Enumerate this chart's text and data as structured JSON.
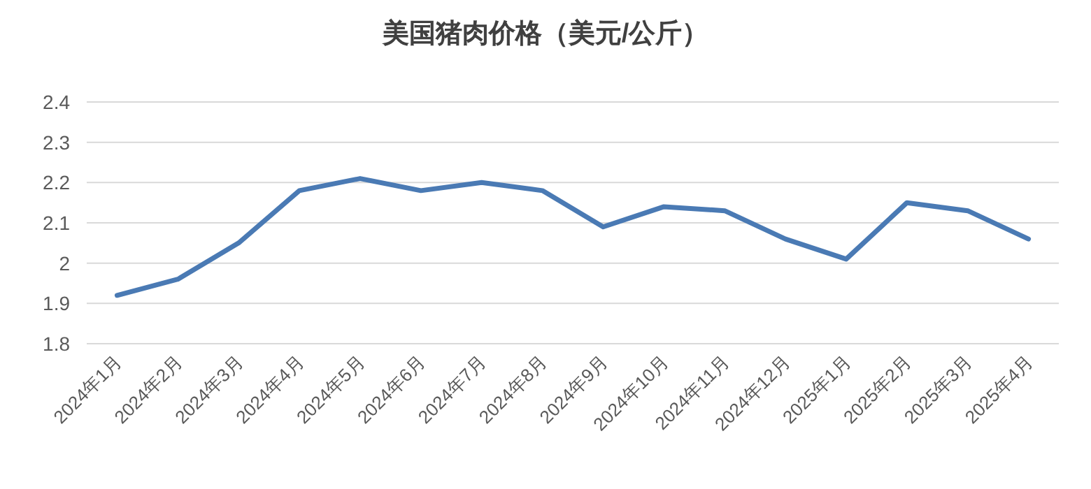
{
  "chart_data": {
    "type": "line",
    "title": "美国猪肉价格（美元/公斤）",
    "categories": [
      "2024年1月",
      "2024年2月",
      "2024年3月",
      "2024年4月",
      "2024年5月",
      "2024年6月",
      "2024年7月",
      "2024年8月",
      "2024年9月",
      "2024年10月",
      "2024年11月",
      "2024年12月",
      "2025年1月",
      "2025年2月",
      "2025年3月",
      "2025年4月"
    ],
    "series": [
      {
        "color": "#4a7ab4",
        "values": [
          1.92,
          1.96,
          2.05,
          2.18,
          2.21,
          2.18,
          2.2,
          2.18,
          2.09,
          2.14,
          2.13,
          2.06,
          2.01,
          2.15,
          2.13,
          2.06
        ]
      }
    ],
    "ylim": [
      1.8,
      2.4
    ],
    "yticks": [
      1.8,
      1.9,
      2,
      2.1,
      2.2,
      2.3,
      2.4
    ],
    "grid": "y"
  }
}
